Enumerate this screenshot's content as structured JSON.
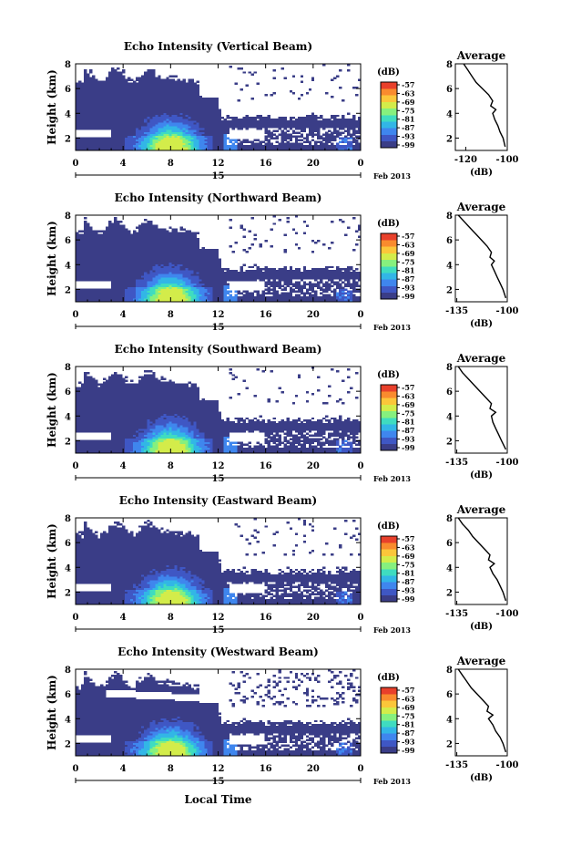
{
  "figure": {
    "xlabel": "Local Time",
    "colormap": [
      "#3a3d87",
      "#3f57c4",
      "#3f86ee",
      "#32b6e6",
      "#3fdcc0",
      "#86f07e",
      "#d3ec4a",
      "#fbc63a",
      "#f98b2e",
      "#e8402b"
    ]
  },
  "chart_data": [
    {
      "type": "heatmap",
      "title": "Echo Intensity (Vertical Beam)",
      "ylabel": "Height (km)",
      "xlim": [
        0,
        24
      ],
      "ylim": [
        1,
        8
      ],
      "x_ticks": [
        "0",
        "4",
        "8",
        "12",
        "16",
        "20",
        "0"
      ],
      "y_ticks": [
        "2",
        "4",
        "6",
        "8"
      ],
      "date_label": "15",
      "date_suffix": "Feb 2013",
      "colorbar": {
        "unit": "(dB)",
        "ticks": [
          "-57",
          "-63",
          "-69",
          "-75",
          "-81",
          "-87",
          "-93",
          "-99"
        ]
      },
      "profile": {
        "title": "Average",
        "xlabel": "(dB)",
        "x_ticks": [
          "-120",
          "-100"
        ],
        "xlim": [
          -125,
          -100
        ],
        "y": [
          1.3,
          2,
          2.5,
          3,
          3.5,
          4,
          4.3,
          4.6,
          5,
          5.5,
          6,
          6.5,
          7,
          7.5,
          8
        ],
        "x": [
          -101,
          -102,
          -103.5,
          -104.5,
          -106,
          -107,
          -105.5,
          -108,
          -107,
          -109,
          -112,
          -115,
          -117,
          -119,
          -121
        ]
      }
    },
    {
      "type": "heatmap",
      "title": "Echo Intensity (Northward Beam)",
      "ylabel": "Height (km)",
      "xlim": [
        0,
        24
      ],
      "ylim": [
        1,
        8
      ],
      "x_ticks": [
        "0",
        "4",
        "8",
        "12",
        "16",
        "20",
        "0"
      ],
      "y_ticks": [
        "2",
        "4",
        "6",
        "8"
      ],
      "date_label": "15",
      "date_suffix": "Feb 2013",
      "colorbar": {
        "unit": "(dB)",
        "ticks": [
          "-57",
          "-63",
          "-69",
          "-75",
          "-81",
          "-87",
          "-93",
          "-99"
        ]
      },
      "profile": {
        "title": "Average",
        "xlabel": "(dB)",
        "x_ticks": [
          "-135",
          "-100"
        ],
        "xlim": [
          -136,
          -100
        ],
        "y": [
          1.3,
          2,
          2.5,
          3,
          3.5,
          4,
          4.3,
          4.6,
          5,
          5.5,
          6,
          6.5,
          7,
          7.5,
          8
        ],
        "x": [
          -101,
          -103,
          -105,
          -107,
          -109,
          -111,
          -109,
          -112,
          -111,
          -114,
          -118,
          -122,
          -126,
          -130,
          -134
        ]
      }
    },
    {
      "type": "heatmap",
      "title": "Echo Intensity (Southward Beam)",
      "ylabel": "Height (km)",
      "xlim": [
        0,
        24
      ],
      "ylim": [
        1,
        8
      ],
      "x_ticks": [
        "0",
        "4",
        "8",
        "12",
        "16",
        "20",
        "0"
      ],
      "y_ticks": [
        "2",
        "4",
        "6",
        "8"
      ],
      "date_label": "15",
      "date_suffix": "Feb 2013",
      "colorbar": {
        "unit": "(dB)",
        "ticks": [
          "-57",
          "-63",
          "-69",
          "-75",
          "-81",
          "-87",
          "-93",
          "-99"
        ]
      },
      "profile": {
        "title": "Average",
        "xlabel": "(dB)",
        "x_ticks": [
          "-135",
          "-100"
        ],
        "xlim": [
          -136,
          -100
        ],
        "y": [
          1.3,
          2,
          2.5,
          3,
          3.5,
          4,
          4.3,
          4.6,
          5,
          5.5,
          6,
          6.5,
          7,
          7.5,
          8
        ],
        "x": [
          -101,
          -104,
          -106,
          -108,
          -110,
          -111,
          -108,
          -112,
          -111,
          -115,
          -119,
          -123,
          -127,
          -131,
          -134
        ]
      }
    },
    {
      "type": "heatmap",
      "title": "Echo Intensity (Eastward Beam)",
      "ylabel": "Height (km)",
      "xlim": [
        0,
        24
      ],
      "ylim": [
        1,
        8
      ],
      "x_ticks": [
        "0",
        "4",
        "8",
        "12",
        "16",
        "20",
        "0"
      ],
      "y_ticks": [
        "2",
        "4",
        "6",
        "8"
      ],
      "date_label": "15",
      "date_suffix": "Feb 2013",
      "colorbar": {
        "unit": "(dB)",
        "ticks": [
          "-57",
          "-63",
          "-69",
          "-75",
          "-81",
          "-87",
          "-93",
          "-99"
        ]
      },
      "profile": {
        "title": "Average",
        "xlabel": "(dB)",
        "x_ticks": [
          "-135",
          "-100"
        ],
        "xlim": [
          -136,
          -100
        ],
        "y": [
          1.3,
          2,
          2.5,
          3,
          3.5,
          4,
          4.3,
          4.6,
          5,
          5.5,
          6,
          6.5,
          7,
          7.5,
          8
        ],
        "x": [
          -101,
          -103,
          -105,
          -107,
          -110,
          -112,
          -109,
          -113,
          -112,
          -116,
          -120,
          -124,
          -127,
          -131,
          -134
        ]
      }
    },
    {
      "type": "heatmap",
      "title": "Echo Intensity (Westward Beam)",
      "ylabel": "Height (km)",
      "xlim": [
        0,
        24
      ],
      "ylim": [
        1,
        8
      ],
      "x_ticks": [
        "0",
        "4",
        "8",
        "12",
        "16",
        "20",
        "0"
      ],
      "y_ticks": [
        "2",
        "4",
        "6",
        "8"
      ],
      "date_label": "15",
      "date_suffix": "Feb 2013",
      "colorbar": {
        "unit": "(dB)",
        "ticks": [
          "-57",
          "-63",
          "-69",
          "-75",
          "-81",
          "-87",
          "-93",
          "-99"
        ]
      },
      "profile": {
        "title": "Average",
        "xlabel": "(dB)",
        "x_ticks": [
          "-135",
          "-100"
        ],
        "xlim": [
          -136,
          -100
        ],
        "y": [
          1.3,
          2,
          2.5,
          3,
          3.5,
          4,
          4.3,
          4.6,
          5,
          5.5,
          6,
          6.5,
          7,
          7.5,
          8
        ],
        "x": [
          -101,
          -103,
          -105,
          -108,
          -110,
          -113,
          -110,
          -114,
          -113,
          -117,
          -121,
          -125,
          -128,
          -131,
          -134
        ]
      }
    }
  ]
}
